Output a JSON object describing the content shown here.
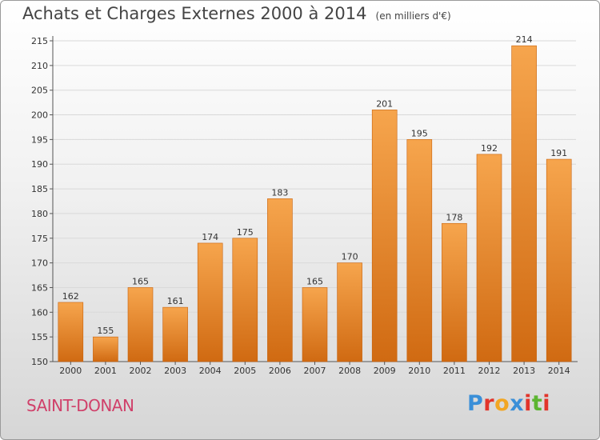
{
  "title": "Achats et Charges Externes 2000 à 2014",
  "subtitle": "(en milliers d'€)",
  "place_name": "SAINT-DONAN",
  "logo": {
    "text": "Proxiti",
    "letters": [
      {
        "char": "P",
        "color": "#3a8fd8"
      },
      {
        "char": "r",
        "color": "#e2342a"
      },
      {
        "char": "o",
        "color": "#f2a623"
      },
      {
        "char": "x",
        "color": "#3a8fd8"
      },
      {
        "char": "i",
        "color": "#e2342a"
      },
      {
        "char": "t",
        "color": "#5cb531"
      },
      {
        "char": "i",
        "color": "#e2342a"
      }
    ]
  },
  "colors": {
    "bar_top": "#f6a54d",
    "bar_bottom": "#d06a12",
    "bar_edge": "#c8620c",
    "grid": "#d9d9d9",
    "axis": "#555555",
    "text": "#333333",
    "place": "#d0406a"
  },
  "chart_data": {
    "type": "bar",
    "title": "Achats et Charges Externes 2000 à 2014",
    "subtitle": "(en milliers d'€)",
    "categories": [
      "2000",
      "2001",
      "2002",
      "2003",
      "2004",
      "2005",
      "2006",
      "2007",
      "2008",
      "2009",
      "2010",
      "2011",
      "2012",
      "2013",
      "2014"
    ],
    "values": [
      162,
      155,
      165,
      161,
      174,
      175,
      183,
      165,
      170,
      201,
      195,
      178,
      192,
      214,
      191
    ],
    "ylim": [
      150,
      215
    ],
    "yticks": [
      150,
      155,
      160,
      165,
      170,
      175,
      180,
      185,
      190,
      195,
      200,
      205,
      210,
      215
    ],
    "grid": true,
    "legend": "none"
  }
}
